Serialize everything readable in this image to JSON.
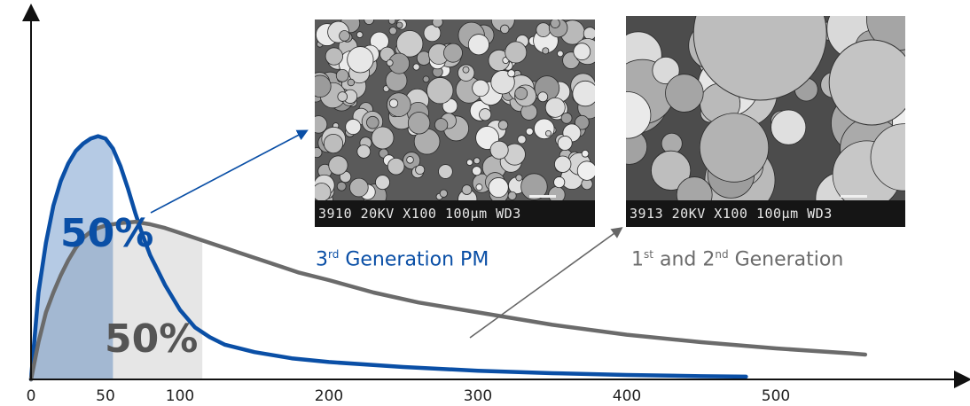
{
  "chart_data": {
    "type": "area",
    "x_ticks": [
      0,
      50,
      100,
      200,
      300,
      400,
      500
    ],
    "xlim": [
      0,
      600
    ],
    "series": [
      {
        "color": "#0a4fa6",
        "points": [
          [
            0,
            0
          ],
          [
            5,
            35
          ],
          [
            10,
            55
          ],
          [
            15,
            70
          ],
          [
            20,
            80
          ],
          [
            25,
            87
          ],
          [
            30,
            92
          ],
          [
            35,
            95
          ],
          [
            40,
            97
          ],
          [
            45,
            98
          ],
          [
            50,
            97
          ],
          [
            55,
            93
          ],
          [
            60,
            86
          ],
          [
            65,
            77
          ],
          [
            70,
            67
          ],
          [
            75,
            58
          ],
          [
            80,
            50
          ],
          [
            85,
            44
          ],
          [
            90,
            38
          ],
          [
            95,
            33
          ],
          [
            100,
            28
          ],
          [
            110,
            21
          ],
          [
            120,
            17
          ],
          [
            130,
            14
          ],
          [
            150,
            11
          ],
          [
            175,
            8.5
          ],
          [
            200,
            7
          ],
          [
            250,
            5
          ],
          [
            300,
            3.5
          ],
          [
            350,
            2.5
          ],
          [
            400,
            1.8
          ],
          [
            450,
            1.3
          ],
          [
            480,
            1.1
          ]
        ],
        "shaded_to_x": 55,
        "share_label": "50%"
      },
      {
        "color": "#6b6b6b",
        "points": [
          [
            0,
            0
          ],
          [
            5,
            15
          ],
          [
            10,
            27
          ],
          [
            15,
            35
          ],
          [
            20,
            42
          ],
          [
            25,
            48
          ],
          [
            30,
            53
          ],
          [
            35,
            57
          ],
          [
            40,
            59.5
          ],
          [
            45,
            61
          ],
          [
            50,
            62
          ],
          [
            60,
            63
          ],
          [
            70,
            63.5
          ],
          [
            80,
            62.5
          ],
          [
            90,
            61
          ],
          [
            100,
            59
          ],
          [
            120,
            55
          ],
          [
            140,
            51
          ],
          [
            160,
            47
          ],
          [
            180,
            43
          ],
          [
            200,
            40
          ],
          [
            230,
            35
          ],
          [
            260,
            31
          ],
          [
            300,
            27
          ],
          [
            350,
            22
          ],
          [
            400,
            18
          ],
          [
            450,
            15
          ],
          [
            500,
            12.5
          ],
          [
            550,
            10.5
          ],
          [
            560,
            10
          ]
        ],
        "shaded_to_x": 115,
        "share_label": "50%"
      }
    ],
    "ylim": [
      0,
      120
    ]
  },
  "images": [
    {
      "caption_main": "3",
      "caption_sup1": "rd",
      "caption_rest": " Generation PM",
      "caption_color": "#0a4fa6",
      "sem_label": "3910  20KV      X100 100µm  WD3"
    },
    {
      "caption_main": "1",
      "caption_sup1": "st",
      "caption_mid": " and 2",
      "caption_sup2": "nd",
      "caption_rest": " Generation",
      "caption_color": "#6b6b6b",
      "sem_label": "3913  20KV      X100 100µm  WD3"
    }
  ]
}
